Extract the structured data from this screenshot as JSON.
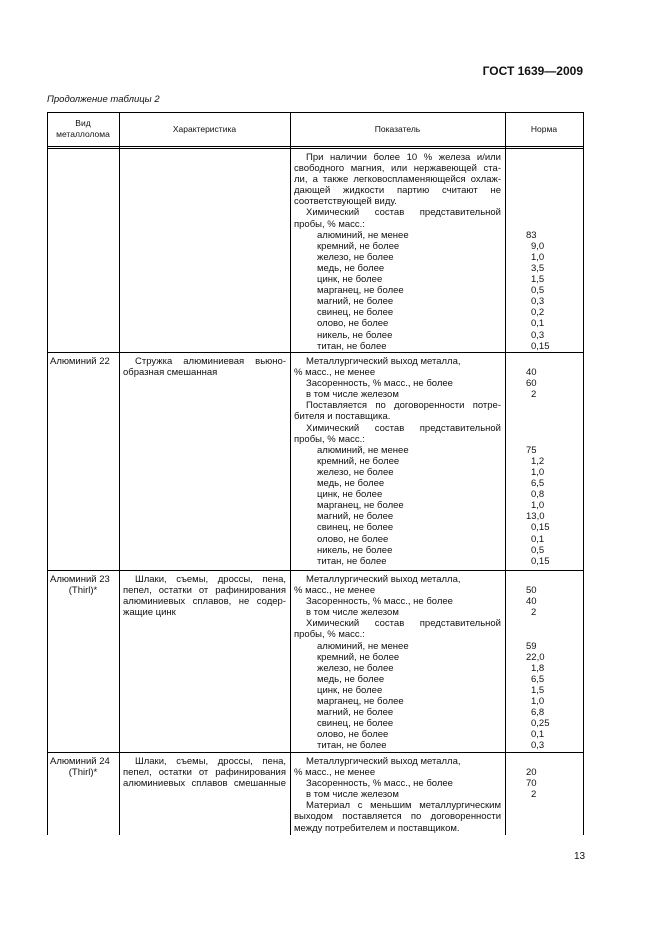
{
  "header": {
    "doc_title": "ГОСТ 1639—2009",
    "caption": "Продолжение таблицы 2"
  },
  "table": {
    "columns": [
      "Вид металлолома",
      "Характеристика",
      "Показатель",
      "Норма"
    ],
    "columns_lines": [
      [
        "Вид",
        "металлолома"
      ],
      [
        "Характеристика"
      ],
      [
        "Показатель"
      ],
      [
        "Норма"
      ]
    ],
    "rows": [
      {
        "kind": [],
        "char": [],
        "entries": [
          {
            "t": "При наличии более 10 % железа и/или",
            "k": "j",
            "i": 1
          },
          {
            "t": "свободного магния, или нержавеющей ста-",
            "k": "j",
            "i": 0
          },
          {
            "t": "ли, а также легковоспламеняющейся охлаж-",
            "k": "j",
            "i": 0
          },
          {
            "t": "дающей жидкости партию считают не",
            "k": "j",
            "i": 0
          },
          {
            "t": "соответствующей виду.",
            "k": "l",
            "i": 0
          },
          {
            "t": "Химический состав представительной",
            "k": "j",
            "i": 1
          },
          {
            "t": "пробы, % масс.:",
            "k": "l",
            "i": 0
          },
          {
            "t": "алюминий, не менее",
            "k": "l",
            "i": 2,
            "n": "83"
          },
          {
            "t": "кремний, не более",
            "k": "l",
            "i": 2,
            "n": "9,0"
          },
          {
            "t": "железо, не более",
            "k": "l",
            "i": 2,
            "n": "1,0"
          },
          {
            "t": "медь, не более",
            "k": "l",
            "i": 2,
            "n": "3,5"
          },
          {
            "t": "цинк, не более",
            "k": "l",
            "i": 2,
            "n": "1,5"
          },
          {
            "t": "марганец, не более",
            "k": "l",
            "i": 2,
            "n": "0,5"
          },
          {
            "t": "магний, не более",
            "k": "l",
            "i": 2,
            "n": "0,3"
          },
          {
            "t": "свинец, не более",
            "k": "l",
            "i": 2,
            "n": "0,2"
          },
          {
            "t": "олово, не более",
            "k": "l",
            "i": 2,
            "n": "0,1"
          },
          {
            "t": "никель, не более",
            "k": "l",
            "i": 2,
            "n": "0,3"
          },
          {
            "t": "титан, не более",
            "k": "l",
            "i": 2,
            "n": "0,15"
          }
        ]
      },
      {
        "kind": [
          "Алюминий 22"
        ],
        "char": [
          {
            "t": "Стружка алюминиевая вьюно-",
            "k": "j",
            "i": 1
          },
          {
            "t": "образная смешанная",
            "k": "l",
            "i": 0
          }
        ],
        "entries": [
          {
            "t": "Металлургический выход металла,",
            "k": "l",
            "i": 1
          },
          {
            "t": "% масс., не менее",
            "k": "l",
            "i": 0,
            "n": "40"
          },
          {
            "t": "Засоренность, % масс., не более",
            "k": "l",
            "i": 1,
            "n": "60"
          },
          {
            "t": "в том числе железом",
            "k": "l",
            "i": 1,
            "n": "2"
          },
          {
            "t": "Поставляется по договоренности потре-",
            "k": "j",
            "i": 1
          },
          {
            "t": "бителя и поставщика.",
            "k": "l",
            "i": 0
          },
          {
            "t": "Химический состав представительной",
            "k": "j",
            "i": 1
          },
          {
            "t": "пробы, % масс.:",
            "k": "l",
            "i": 0
          },
          {
            "t": "алюминий, не менее",
            "k": "l",
            "i": 2,
            "n": "75"
          },
          {
            "t": "кремний, не более",
            "k": "l",
            "i": 2,
            "n": "1,2"
          },
          {
            "t": "железо, не более",
            "k": "l",
            "i": 2,
            "n": "1,0"
          },
          {
            "t": "медь, не более",
            "k": "l",
            "i": 2,
            "n": "6,5"
          },
          {
            "t": "цинк, не более",
            "k": "l",
            "i": 2,
            "n": "0,8"
          },
          {
            "t": "марганец, не более",
            "k": "l",
            "i": 2,
            "n": "1,0"
          },
          {
            "t": "магний, не более",
            "k": "l",
            "i": 2,
            "n": "13,0"
          },
          {
            "t": "свинец, не более",
            "k": "l",
            "i": 2,
            "n": "0,15"
          },
          {
            "t": "олово, не более",
            "k": "l",
            "i": 2,
            "n": "0,1"
          },
          {
            "t": "никель, не более",
            "k": "l",
            "i": 2,
            "n": "0,5"
          },
          {
            "t": "титан, не более",
            "k": "l",
            "i": 2,
            "n": "0,15"
          }
        ]
      },
      {
        "kind": [
          "Алюминий 23",
          "(Thirl)*"
        ],
        "char": [
          {
            "t": "Шлаки, съемы, дроссы, пена,",
            "k": "j",
            "i": 1
          },
          {
            "t": "пепел, остатки от рафинирования",
            "k": "j",
            "i": 0
          },
          {
            "t": "алюминиевых сплавов, не содер-",
            "k": "j",
            "i": 0
          },
          {
            "t": "жащие цинк",
            "k": "l",
            "i": 0
          }
        ],
        "entries": [
          {
            "t": "Металлургический выход металла,",
            "k": "l",
            "i": 1
          },
          {
            "t": "% масс., не менее",
            "k": "l",
            "i": 0,
            "n": "50"
          },
          {
            "t": "Засоренность, % масс., не более",
            "k": "l",
            "i": 1,
            "n": "40"
          },
          {
            "t": "в том числе железом",
            "k": "l",
            "i": 1,
            "n": "2"
          },
          {
            "t": "Химический состав представительной",
            "k": "j",
            "i": 1
          },
          {
            "t": "пробы, % масс.:",
            "k": "l",
            "i": 0
          },
          {
            "t": "алюминий, не менее",
            "k": "l",
            "i": 2,
            "n": "59"
          },
          {
            "t": "кремний, не более",
            "k": "l",
            "i": 2,
            "n": "22,0"
          },
          {
            "t": "железо, не более",
            "k": "l",
            "i": 2,
            "n": "1,8"
          },
          {
            "t": "медь, не более",
            "k": "l",
            "i": 2,
            "n": "6,5"
          },
          {
            "t": "цинк, не более",
            "k": "l",
            "i": 2,
            "n": "1,5"
          },
          {
            "t": "марганец, не более",
            "k": "l",
            "i": 2,
            "n": "1,0"
          },
          {
            "t": "магний, не более",
            "k": "l",
            "i": 2,
            "n": "6,8"
          },
          {
            "t": "свинец, не более",
            "k": "l",
            "i": 2,
            "n": "0,25"
          },
          {
            "t": "олово, не более",
            "k": "l",
            "i": 2,
            "n": "0,1"
          },
          {
            "t": "титан, не более",
            "k": "l",
            "i": 2,
            "n": "0,3"
          }
        ]
      },
      {
        "kind": [
          "Алюминий 24",
          "(Thirl)*"
        ],
        "char": [
          {
            "t": "Шлаки, съемы, дроссы, пена,",
            "k": "j",
            "i": 1
          },
          {
            "t": "пепел, остатки от рафинирования",
            "k": "j",
            "i": 0
          },
          {
            "t": "алюминиевых сплавов смешанные",
            "k": "j",
            "i": 0
          }
        ],
        "entries": [
          {
            "t": "Металлургический выход металла,",
            "k": "l",
            "i": 1
          },
          {
            "t": "% масс., не менее",
            "k": "l",
            "i": 0,
            "n": "20"
          },
          {
            "t": "Засоренность, % масс., не более",
            "k": "l",
            "i": 1,
            "n": "70"
          },
          {
            "t": "в том числе железом",
            "k": "l",
            "i": 1,
            "n": "2"
          },
          {
            "t": "Материал с меньшим металлургическим",
            "k": "j",
            "i": 1
          },
          {
            "t": "выходом поставляется по договоренности",
            "k": "j",
            "i": 0
          },
          {
            "t": "между потребителем и поставщиком.",
            "k": "l",
            "i": 0
          }
        ]
      }
    ]
  },
  "footer": {
    "page_number": "13"
  }
}
